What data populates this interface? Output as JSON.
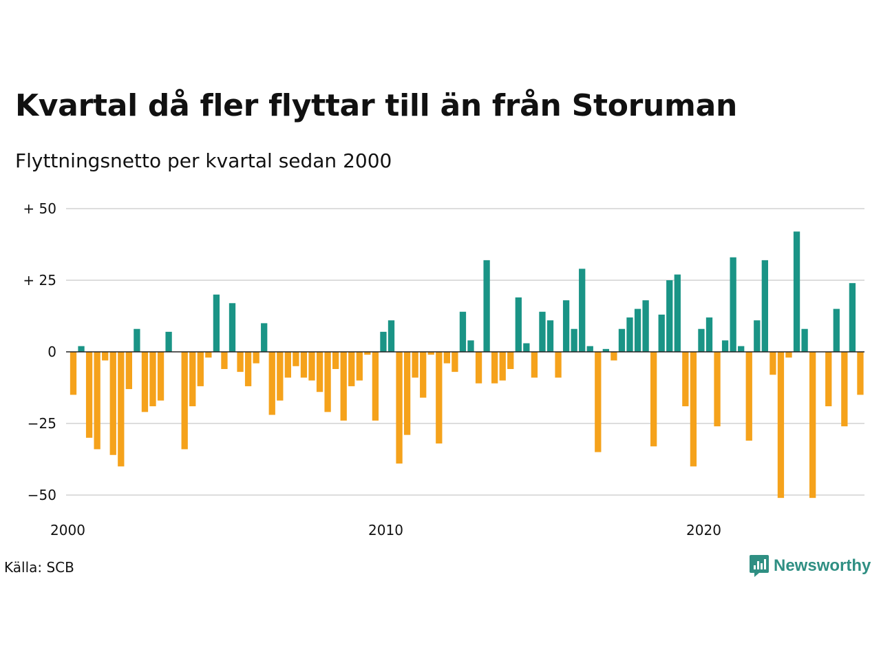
{
  "title": "Kvartal då fler flyttar till än från Storuman",
  "subtitle": "Flyttningsnetto per kvartal sedan 2000",
  "source": "Källa: SCB",
  "brand": "Newsworthy",
  "colors": {
    "positive": "#1a9486",
    "negative": "#f5a21b",
    "grid": "#dddddd",
    "brand": "#2f8f83"
  },
  "chart_data": {
    "type": "bar",
    "title": "Kvartal då fler flyttar till än från Storuman",
    "subtitle": "Flyttningsnetto per kvartal sedan 2000",
    "xlabel": "",
    "ylabel": "",
    "ylim": [
      -50,
      50
    ],
    "yticks": [
      {
        "value": 50,
        "label": "+ 50"
      },
      {
        "value": 25,
        "label": "+ 25"
      },
      {
        "value": 0,
        "label": "0"
      },
      {
        "value": -25,
        "label": "−25"
      },
      {
        "value": -50,
        "label": "−50"
      }
    ],
    "xticks": [
      {
        "index": 0,
        "label": "2000"
      },
      {
        "index": 40,
        "label": "2010"
      },
      {
        "index": 80,
        "label": "2020"
      }
    ],
    "x_start": "2000 Q1",
    "grid": true,
    "legend": "none",
    "values": [
      -15,
      2,
      -30,
      -34,
      -3,
      -36,
      -40,
      -13,
      8,
      -21,
      -19,
      -17,
      7,
      0,
      -34,
      -19,
      -12,
      -2,
      20,
      -6,
      17,
      -7,
      -12,
      -4,
      10,
      -22,
      -17,
      -9,
      -5,
      -9,
      -10,
      -14,
      -21,
      -6,
      -24,
      -12,
      -10,
      -1,
      -24,
      7,
      11,
      -39,
      -29,
      -9,
      -16,
      -1,
      -32,
      -4,
      -7,
      14,
      4,
      -11,
      32,
      -11,
      -10,
      -6,
      19,
      3,
      -9,
      14,
      11,
      -9,
      18,
      8,
      29,
      2,
      -35,
      1,
      -3,
      8,
      12,
      15,
      18,
      -33,
      13,
      25,
      27,
      -19,
      -40,
      8,
      12,
      -26,
      4,
      33,
      2,
      -31,
      11,
      32,
      -8,
      -51,
      -2,
      42,
      8,
      -51,
      0,
      -19,
      15,
      -26,
      24,
      -15
    ]
  }
}
